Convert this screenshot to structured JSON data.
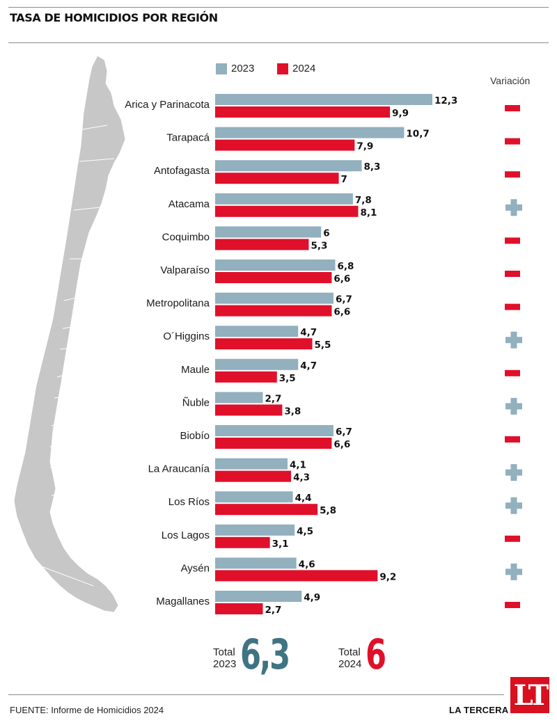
{
  "header": {
    "title": "TASA DE HOMICIDIOS POR REGIÓN"
  },
  "legend": {
    "title_variation": "Variación",
    "label_2023": "2023",
    "label_2024": "2024"
  },
  "colors": {
    "bar_2023": "#92b0bd",
    "bar_2024": "#e0102a",
    "minus": "#e0102a",
    "plus": "#92b0bd",
    "total_2023": "#3f7482",
    "total_2024": "#e0102a",
    "map_fill": "#c7c7c7"
  },
  "chart_data": {
    "type": "bar",
    "orientation": "horizontal",
    "categories": [
      "Arica y Parinacota",
      "Tarapacá",
      "Antofagasta",
      "Atacama",
      "Coquimbo",
      "Valparaíso",
      "Metropolitana",
      "O´Higgins",
      "Maule",
      "Ñuble",
      "Biobío",
      "La Araucanía",
      "Los Ríos",
      "Los Lagos",
      "Aysén",
      "Magallanes"
    ],
    "series": [
      {
        "name": "2023",
        "values": [
          12.3,
          10.7,
          8.3,
          7.8,
          6,
          6.8,
          6.7,
          4.7,
          4.7,
          2.7,
          6.7,
          4.1,
          4.4,
          4.5,
          4.6,
          4.9
        ],
        "labels": [
          "12,3",
          "10,7",
          "8,3",
          "7,8",
          "6",
          "6,8",
          "6,7",
          "4,7",
          "4,7",
          "2,7",
          "6,7",
          "4,1",
          "4,4",
          "4,5",
          "4,6",
          "4,9"
        ]
      },
      {
        "name": "2024",
        "values": [
          9.9,
          7.9,
          7,
          8.1,
          5.3,
          6.6,
          6.6,
          5.5,
          3.5,
          3.8,
          6.6,
          4.3,
          5.8,
          3.1,
          9.2,
          2.7
        ],
        "labels": [
          "9,9",
          "7,9",
          "7",
          "8,1",
          "5,3",
          "6,6",
          "6,6",
          "5,5",
          "3,5",
          "3,8",
          "6,6",
          "4,3",
          "5,8",
          "3,1",
          "9,2",
          "2,7"
        ]
      }
    ],
    "variation": [
      "minus",
      "minus",
      "minus",
      "plus",
      "minus",
      "minus",
      "minus",
      "plus",
      "minus",
      "plus",
      "minus",
      "plus",
      "plus",
      "minus",
      "plus",
      "minus"
    ],
    "xlim": [
      0,
      12.3
    ]
  },
  "totals": {
    "t2023": {
      "label_line1": "Total",
      "label_line2": "2023",
      "value": "6,3"
    },
    "t2024": {
      "label_line1": "Total",
      "label_line2": "2024",
      "value": "6"
    }
  },
  "footer": {
    "source_prefix": "FUENTE:",
    "source_text": "Informe de Homicidios 2024",
    "brand": "LA TERCERA",
    "logo": "LT"
  }
}
